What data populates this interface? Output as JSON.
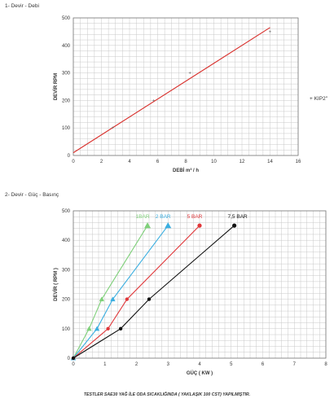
{
  "sections": {
    "first": "1- Devir - Debi",
    "second": "2- Devir - Güç - Basınç"
  },
  "footer_note": "TESTLER SAE30 YAĞ İLE ODA SICAKLIĞINDA ( YAKLAŞIK 100 CST) YAPILMIŞTIR.",
  "chart_data": [
    {
      "type": "line",
      "title": "",
      "xlabel": "DEBİ m³ / h",
      "ylabel": "DEVİR RPM",
      "xlim": [
        0,
        16
      ],
      "ylim": [
        0,
        500
      ],
      "x_ticks": [
        0,
        2,
        4,
        6,
        8,
        10,
        12,
        14,
        16
      ],
      "y_ticks": [
        0,
        100,
        200,
        300,
        400,
        500
      ],
      "grid": true,
      "legend": "right",
      "series": [
        {
          "name": "KIP2\"",
          "color": "#d9302c",
          "x": [
            0,
            14
          ],
          "y": [
            10,
            465
          ],
          "points": [
            [
              2.8,
              100
            ],
            [
              5.7,
              200
            ],
            [
              8.3,
              300
            ],
            [
              14,
              450
            ]
          ]
        }
      ]
    },
    {
      "type": "line",
      "title": "",
      "xlabel": "GÜÇ ( KW )",
      "ylabel": "DEVİR ( RPM )",
      "xlim": [
        0,
        8
      ],
      "ylim": [
        0,
        500
      ],
      "x_ticks": [
        0,
        1,
        2,
        3,
        4,
        5,
        6,
        7,
        8
      ],
      "y_ticks": [
        0,
        100,
        200,
        300,
        400,
        500
      ],
      "grid": true,
      "series": [
        {
          "name": "1BAR",
          "color": "#7fd07a",
          "marker": "triangle",
          "x": [
            0,
            0.5,
            0.9,
            2.35
          ],
          "y": [
            0,
            100,
            200,
            450
          ]
        },
        {
          "name": "2 BAR",
          "color": "#3aaee0",
          "marker": "triangle",
          "x": [
            0,
            0.75,
            1.25,
            3.0
          ],
          "y": [
            0,
            100,
            200,
            450
          ]
        },
        {
          "name": "5 BAR",
          "color": "#e0373a",
          "marker": "circle",
          "x": [
            0,
            1.1,
            1.7,
            4.0
          ],
          "y": [
            0,
            100,
            200,
            450
          ]
        },
        {
          "name": "7,5 BAR",
          "color": "#111111",
          "marker": "circle",
          "x": [
            0,
            1.5,
            2.4,
            5.1
          ],
          "y": [
            0,
            100,
            200,
            450
          ]
        }
      ]
    }
  ]
}
